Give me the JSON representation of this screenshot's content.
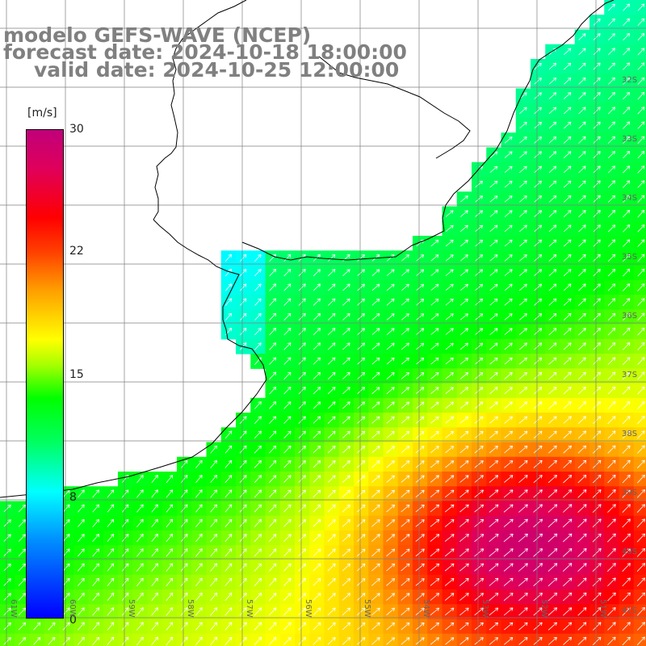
{
  "map": {
    "title_line1": "modelo GEFS-WAVE (NCEP)",
    "title_line2": "forecast date: 2024-10-18 18:00:00",
    "title_line3": "valid date: 2024-10-25 12:00:00",
    "variable_unit": "[m/s]",
    "colorbar": {
      "unit": "[m/s]",
      "ticks": [
        "30",
        "22",
        "15",
        "8",
        "0"
      ],
      "colors": [
        "#0000ff",
        "#00ffff",
        "#00ff00",
        "#ffff00",
        "#ff0000",
        "#c0007a"
      ]
    },
    "lat_labels": [
      "32S",
      "33S",
      "34S",
      "35S",
      "36S",
      "37S",
      "38S",
      "39S",
      "40S",
      "41S"
    ],
    "lon_labels": [
      "61W",
      "60W",
      "59W",
      "58W",
      "57W",
      "56W",
      "55W",
      "54W",
      "53W",
      "52W",
      "51W"
    ],
    "colors": {
      "land": "#ffffff",
      "grid": "#7f7f7f",
      "coast": "#000000",
      "arrow": "#ffffff",
      "title": "#808080"
    }
  }
}
